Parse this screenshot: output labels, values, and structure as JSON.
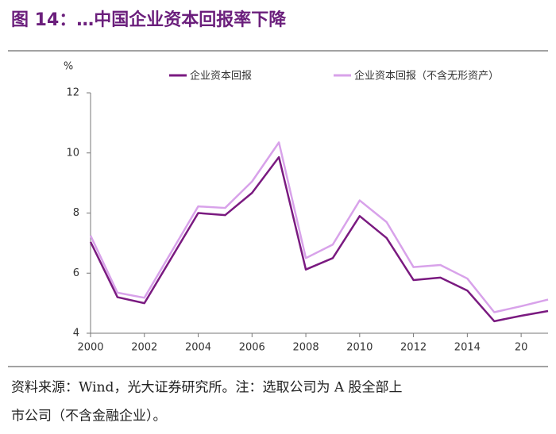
{
  "chart_data": {
    "type": "line",
    "title": "图 14：…中国企业资本回报率下降",
    "y_label": "%",
    "x": [
      2000,
      2001,
      2002,
      2003,
      2004,
      2005,
      2006,
      2007,
      2008,
      2009,
      2010,
      2011,
      2012,
      2013,
      2014,
      2015,
      2016,
      2017
    ],
    "series": [
      {
        "name": "企业资本回报",
        "color": "#7a1a80",
        "values": [
          7.04,
          5.2,
          5.0,
          6.5,
          8.0,
          7.93,
          8.67,
          9.86,
          6.12,
          6.5,
          7.9,
          7.17,
          5.77,
          5.85,
          5.42,
          4.4,
          4.58,
          4.74
        ]
      },
      {
        "name": "企业资本回报（不含无形资产）",
        "color": "#d8a2ea",
        "values": [
          7.25,
          5.35,
          5.18,
          6.7,
          8.22,
          8.17,
          9.05,
          10.35,
          6.5,
          6.95,
          8.42,
          7.7,
          6.2,
          6.27,
          5.82,
          4.7,
          4.9,
          5.12
        ]
      }
    ],
    "xlim": [
      2000,
      2017
    ],
    "xticks": [
      2000,
      2002,
      2004,
      2006,
      2008,
      2010,
      2012,
      2014,
      {
        "value": 2016,
        "label": "20"
      }
    ],
    "ylim": [
      4,
      12
    ],
    "yticks": [
      4,
      6,
      8,
      10,
      12
    ],
    "grid": false,
    "legend": "top",
    "footnote": [
      "资料来源：Wind，光大证券研究所。注：选取公司为 A 股全部上",
      "市公司（不含金融企业）。"
    ]
  }
}
